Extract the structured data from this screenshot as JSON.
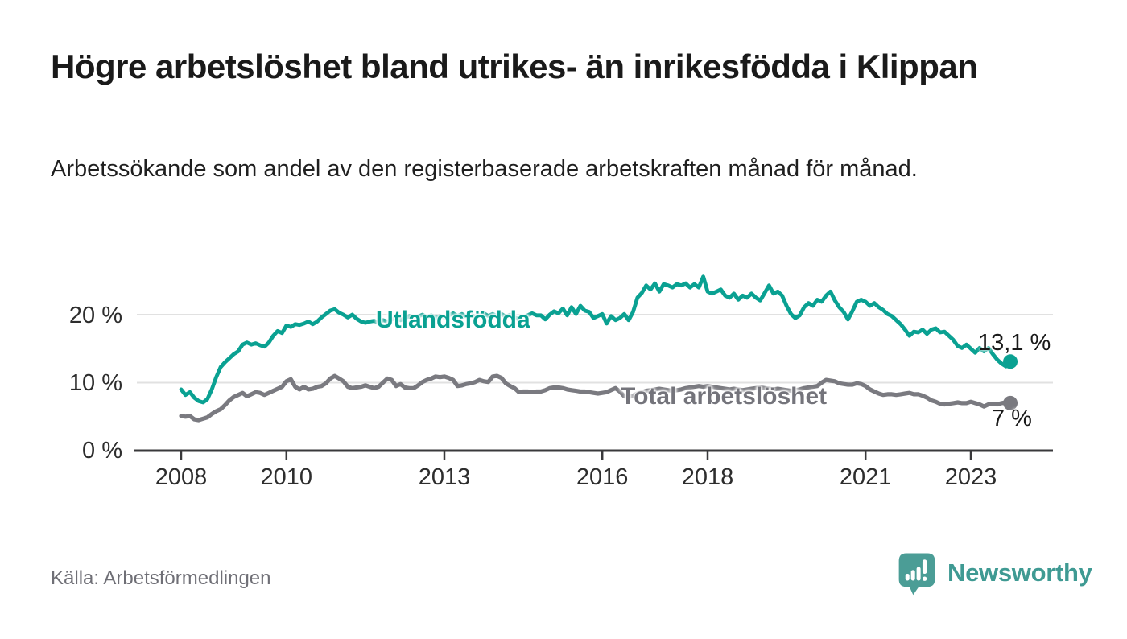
{
  "header": {
    "title": "Högre arbetslöshet bland utrikes- än inrikesfödda i Klippan",
    "subtitle": "Arbetssökande som andel av den registerbaserade arbetskraften månad för månad."
  },
  "footer": {
    "source": "Källa: Arbetsförmedlingen",
    "brand_name": "Newsworthy",
    "brand_icon": "speech-bubble-bar-chart-exclamation"
  },
  "colors": {
    "foreign_born_line": "#0aa192",
    "total_line": "#7a7a80",
    "total_label": "#74747b",
    "annotation_text": "#1a1a1a",
    "grid_line": "#e1e1e1",
    "axis_line": "#39393b",
    "tick_text": "#2d2d2d",
    "brand_teal": "#4b9d96"
  },
  "chart_data": {
    "type": "line",
    "title": "Högre arbetslöshet bland utrikes- än inrikesfödda i Klippan",
    "subtitle": "Arbetssökande som andel av den registerbaserade arbetskraften månad för månad.",
    "unit": "percent",
    "frequency": "monthly",
    "x_start": "2008-01",
    "x_end": "2023-10",
    "ylim": [
      0,
      27
    ],
    "y_ticks": [
      0,
      10,
      20
    ],
    "y_tick_labels": [
      "0 %",
      "10 %",
      "20 %"
    ],
    "x_tick_years": [
      2008,
      2010,
      2013,
      2016,
      2018,
      2021,
      2023
    ],
    "x_tick_labels": [
      "2008",
      "2010",
      "2013",
      "2016",
      "2018",
      "2021",
      "2023"
    ],
    "grid": "horizontal",
    "legend_position": "inline-labels",
    "series": [
      {
        "name": "Utlandsfödda",
        "color": "#0aa192",
        "end_label": "13,1 %",
        "end_value": 13.1,
        "values": [
          9.0,
          8.2,
          8.6,
          7.8,
          7.3,
          7.1,
          7.6,
          9.0,
          10.8,
          12.3,
          13.0,
          13.6,
          14.2,
          14.6,
          15.6,
          15.9,
          15.6,
          15.8,
          15.5,
          15.3,
          15.9,
          16.9,
          17.6,
          17.3,
          18.4,
          18.2,
          18.6,
          18.5,
          18.7,
          19.0,
          18.6,
          19.0,
          19.6,
          20.1,
          20.6,
          20.8,
          20.3,
          20.0,
          19.6,
          20.0,
          19.4,
          19.0,
          18.8,
          19.0,
          19.1,
          18.8,
          19.2,
          19.0,
          19.3,
          19.6,
          19.2,
          19.5,
          19.8,
          19.4,
          19.7,
          20.0,
          19.6,
          19.9,
          19.5,
          19.8,
          19.6,
          19.9,
          20.2,
          19.8,
          20.1,
          19.7,
          20.0,
          19.6,
          19.9,
          20.2,
          19.8,
          20.1,
          19.8,
          20.1,
          19.7,
          20.0,
          19.6,
          19.3,
          19.6,
          19.9,
          20.2,
          19.9,
          19.9,
          19.3,
          20.0,
          20.5,
          20.2,
          20.9,
          19.9,
          21.1,
          20.1,
          21.3,
          20.6,
          20.4,
          19.5,
          19.8,
          20.1,
          18.7,
          19.8,
          19.2,
          19.5,
          20.1,
          19.2,
          20.4,
          22.5,
          23.2,
          24.3,
          23.7,
          24.6,
          23.4,
          24.5,
          24.3,
          24.0,
          24.5,
          24.3,
          24.6,
          24.0,
          24.5,
          24.0,
          25.6,
          23.4,
          23.1,
          23.4,
          23.7,
          22.8,
          22.5,
          23.1,
          22.2,
          22.8,
          22.5,
          23.1,
          22.5,
          22.1,
          23.2,
          24.3,
          23.1,
          23.4,
          22.8,
          21.3,
          20.1,
          19.5,
          19.9,
          21.1,
          21.7,
          21.3,
          22.2,
          21.9,
          22.8,
          23.4,
          22.1,
          21.1,
          20.4,
          19.3,
          20.5,
          21.9,
          22.2,
          21.9,
          21.3,
          21.7,
          21.1,
          20.7,
          20.1,
          19.8,
          19.2,
          18.6,
          17.8,
          16.9,
          17.5,
          17.4,
          17.8,
          17.2,
          17.8,
          18.0,
          17.4,
          17.5,
          16.9,
          16.3,
          15.4,
          15.1,
          15.6,
          15.0,
          14.4,
          15.1,
          14.6,
          15.1,
          14.2,
          13.4,
          12.8,
          12.4,
          13.1
        ]
      },
      {
        "name": "Total arbetslöshet",
        "color": "#7a7a80",
        "end_label": "7 %",
        "end_value": 7.0,
        "values": [
          5.1,
          5.0,
          5.1,
          4.6,
          4.5,
          4.7,
          4.9,
          5.4,
          5.8,
          6.1,
          6.7,
          7.4,
          7.9,
          8.2,
          8.5,
          8.0,
          8.3,
          8.6,
          8.5,
          8.2,
          8.5,
          8.8,
          9.1,
          9.4,
          10.2,
          10.5,
          9.4,
          9.0,
          9.4,
          9.0,
          9.1,
          9.4,
          9.5,
          9.9,
          10.6,
          11.0,
          10.6,
          10.2,
          9.4,
          9.2,
          9.3,
          9.4,
          9.6,
          9.4,
          9.2,
          9.4,
          10.0,
          10.6,
          10.4,
          9.5,
          9.8,
          9.3,
          9.2,
          9.2,
          9.6,
          10.1,
          10.4,
          10.6,
          10.9,
          10.8,
          10.9,
          10.7,
          10.4,
          9.5,
          9.6,
          9.8,
          9.9,
          10.1,
          10.4,
          10.2,
          10.1,
          10.9,
          11.0,
          10.7,
          9.9,
          9.5,
          9.2,
          8.6,
          8.7,
          8.7,
          8.6,
          8.7,
          8.7,
          8.9,
          9.2,
          9.3,
          9.3,
          9.2,
          9.0,
          8.9,
          8.8,
          8.7,
          8.7,
          8.6,
          8.5,
          8.4,
          8.5,
          8.6,
          8.9,
          9.2,
          8.7,
          8.0,
          7.9,
          8.1,
          8.4,
          8.6,
          8.8,
          8.9,
          9.0,
          9.1,
          9.0,
          8.9,
          8.8,
          8.9,
          9.0,
          9.2,
          9.3,
          9.4,
          9.5,
          9.4,
          9.5,
          9.4,
          9.3,
          9.2,
          9.1,
          9.0,
          9.1,
          9.0,
          8.9,
          9.0,
          9.1,
          9.2,
          9.3,
          9.2,
          9.1,
          9.0,
          9.1,
          9.0,
          8.9,
          8.8,
          8.9,
          9.0,
          9.2,
          9.3,
          9.4,
          9.5,
          10.0,
          10.4,
          10.3,
          10.2,
          9.9,
          9.8,
          9.7,
          9.7,
          9.9,
          9.8,
          9.5,
          9.0,
          8.7,
          8.4,
          8.2,
          8.3,
          8.3,
          8.2,
          8.3,
          8.4,
          8.5,
          8.3,
          8.3,
          8.1,
          7.8,
          7.4,
          7.2,
          6.9,
          6.8,
          6.9,
          7.0,
          7.1,
          7.0,
          7.0,
          7.2,
          7.0,
          6.8,
          6.5,
          6.8,
          6.9,
          6.8,
          7.0,
          7.1,
          7.0
        ]
      }
    ]
  }
}
